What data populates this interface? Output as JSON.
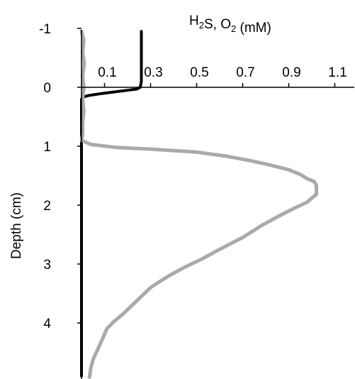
{
  "chart_data": {
    "type": "line",
    "title": "",
    "xlabel": {
      "parts": [
        {
          "text": "H",
          "sub": false
        },
        {
          "text": "2",
          "sub": true
        },
        {
          "text": "S, O",
          "sub": false
        },
        {
          "text": "2",
          "sub": true
        },
        {
          "text": " (mM)",
          "sub": false
        }
      ]
    },
    "ylabel": "Depth (cm)",
    "x_axis": {
      "position": "top",
      "range": [
        0.0,
        1.2
      ],
      "ticks": [
        0.1,
        0.3,
        0.5,
        0.7,
        0.9,
        1.1
      ],
      "tick_labels": [
        "0.1",
        "0.3",
        "0.5",
        "0.7",
        "0.9",
        "1.1"
      ]
    },
    "y_axis": {
      "inverted": true,
      "range": [
        -1,
        5
      ],
      "ticks": [
        -1,
        0,
        1,
        2,
        3,
        4
      ],
      "tick_labels": [
        "-1",
        "0",
        "1",
        "2",
        "3",
        "4"
      ]
    },
    "grid": false,
    "legend": "none",
    "series": [
      {
        "color": "#000000",
        "points": [
          [
            0.26,
            -0.95
          ],
          [
            0.26,
            -0.5
          ],
          [
            0.26,
            -0.1
          ],
          [
            0.255,
            0.0
          ],
          [
            0.24,
            0.03
          ],
          [
            0.2,
            0.05
          ],
          [
            0.14,
            0.08
          ],
          [
            0.08,
            0.11
          ],
          [
            0.03,
            0.14
          ],
          [
            0.005,
            0.17
          ],
          [
            0.0,
            0.2
          ],
          [
            0.0,
            0.3
          ],
          [
            0.0,
            0.5
          ],
          [
            0.0,
            1.0
          ],
          [
            0.0,
            2.0
          ],
          [
            0.0,
            3.0
          ],
          [
            0.0,
            4.0
          ],
          [
            0.0,
            4.9
          ]
        ]
      },
      {
        "color": "#aaaaaa",
        "points": [
          [
            0.0,
            -0.95
          ],
          [
            0.01,
            -0.8
          ],
          [
            0.005,
            -0.6
          ],
          [
            0.012,
            -0.4
          ],
          [
            0.005,
            -0.2
          ],
          [
            0.01,
            0.0
          ],
          [
            0.005,
            0.2
          ],
          [
            0.01,
            0.4
          ],
          [
            0.005,
            0.6
          ],
          [
            0.005,
            0.8
          ],
          [
            0.0,
            0.9
          ],
          [
            0.04,
            0.97
          ],
          [
            0.15,
            1.02
          ],
          [
            0.3,
            1.05
          ],
          [
            0.5,
            1.1
          ],
          [
            0.63,
            1.17
          ],
          [
            0.74,
            1.25
          ],
          [
            0.82,
            1.32
          ],
          [
            0.9,
            1.4
          ],
          [
            0.95,
            1.48
          ],
          [
            0.98,
            1.55
          ],
          [
            1.01,
            1.6
          ],
          [
            1.02,
            1.66
          ],
          [
            1.02,
            1.75
          ],
          [
            1.02,
            1.82
          ],
          [
            1.0,
            1.88
          ],
          [
            0.98,
            1.95
          ],
          [
            0.92,
            2.06
          ],
          [
            0.85,
            2.2
          ],
          [
            0.78,
            2.35
          ],
          [
            0.7,
            2.55
          ],
          [
            0.6,
            2.75
          ],
          [
            0.52,
            2.92
          ],
          [
            0.44,
            3.07
          ],
          [
            0.38,
            3.2
          ],
          [
            0.33,
            3.32
          ],
          [
            0.3,
            3.4
          ],
          [
            0.26,
            3.55
          ],
          [
            0.22,
            3.7
          ],
          [
            0.18,
            3.85
          ],
          [
            0.14,
            3.98
          ],
          [
            0.11,
            4.1
          ],
          [
            0.09,
            4.28
          ],
          [
            0.07,
            4.45
          ],
          [
            0.05,
            4.62
          ],
          [
            0.04,
            4.78
          ],
          [
            0.035,
            4.92
          ]
        ]
      }
    ]
  }
}
